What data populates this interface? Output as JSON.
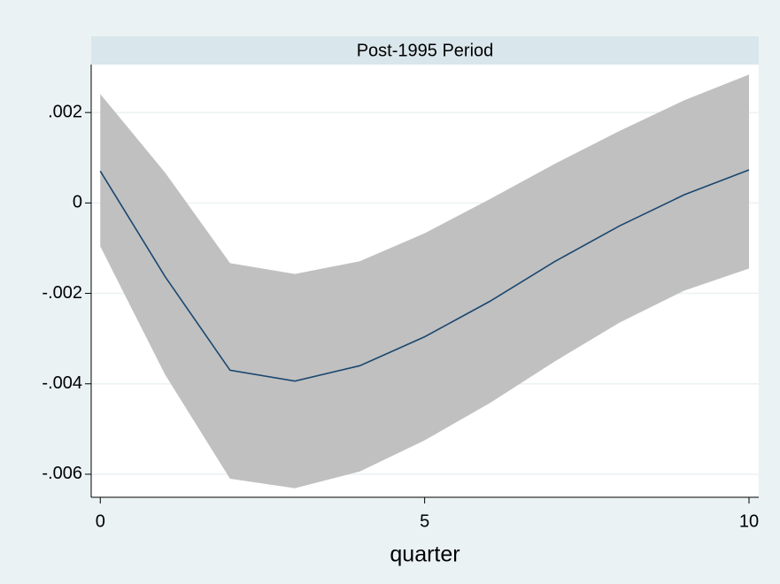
{
  "chart_data": {
    "type": "line_band",
    "title": "Post-1995 Period",
    "xlabel": "quarter",
    "x": [
      0,
      1,
      2,
      3,
      4,
      5,
      6,
      7,
      8,
      9,
      10
    ],
    "values": [
      0.000706,
      -0.00163,
      -0.0037,
      -0.00394,
      -0.0036,
      -0.00296,
      -0.00218,
      -0.0013,
      -0.00051,
      0.00018,
      0.00073
    ],
    "ci_upper": [
      0.00241,
      0.00067,
      -0.00133,
      -0.00157,
      -0.00129,
      -0.00067,
      8e-05,
      0.00086,
      0.00159,
      0.00227,
      0.00284
    ],
    "ci_lower": [
      -0.00096,
      -0.0038,
      -0.0061,
      -0.00631,
      -0.00594,
      -0.00525,
      -0.00443,
      -0.00351,
      -0.00265,
      -0.00194,
      -0.00145
    ],
    "color": "#1a476f",
    "band_color": "#c0c0c0",
    "xlim": [
      -0.14,
      10.15
    ],
    "xticks": [
      0,
      5,
      10
    ],
    "ylim": [
      -0.00651,
      0.00306
    ],
    "yticks": [
      {
        "value": -0.006,
        "label": "-.006"
      },
      {
        "value": -0.004,
        "label": "-.004"
      },
      {
        "value": -0.002,
        "label": "-.002"
      },
      0,
      {
        "value": 0.002,
        "label": ".002"
      }
    ],
    "grid": true
  }
}
